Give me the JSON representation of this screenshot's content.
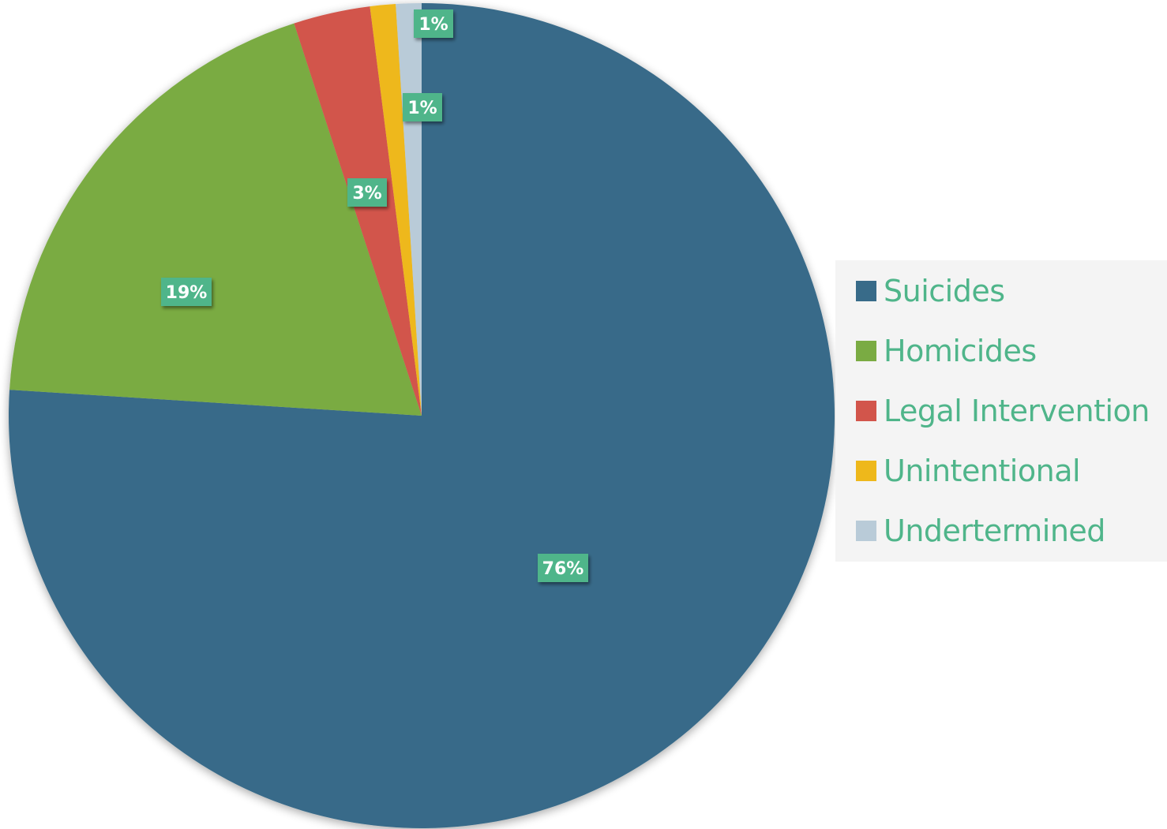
{
  "chart_data": {
    "type": "pie",
    "title": "",
    "categories": [
      "Suicides",
      "Homicides",
      "Legal Intervention",
      "Unintentional",
      "Undertermined"
    ],
    "values": [
      76,
      19,
      3,
      1,
      1
    ],
    "data_labels": [
      "76%",
      "19%",
      "3%",
      "1%",
      "1%"
    ],
    "colors": [
      "#386b89",
      "#7aab43",
      "#d2554b",
      "#eeb81b",
      "#b9cbd8"
    ],
    "data_label_background": "#4fb58a",
    "legend_text_color": "#4fb58a",
    "start_angle_deg": 0,
    "direction": "clockwise",
    "legend_position": "right"
  },
  "legend": {
    "items": [
      {
        "label": "Suicides",
        "color": "#386b89"
      },
      {
        "label": "Homicides",
        "color": "#7aab43"
      },
      {
        "label": "Legal Intervention",
        "color": "#d2554b"
      },
      {
        "label": "Unintentional",
        "color": "#eeb81b"
      },
      {
        "label": "Undertermined",
        "color": "#b9cbd8"
      }
    ]
  }
}
